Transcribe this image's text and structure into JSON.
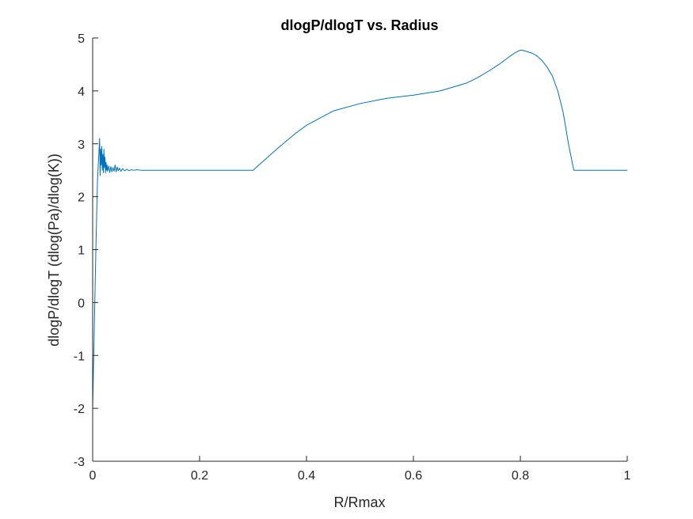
{
  "chart_data": {
    "type": "line",
    "title": "dlogP/dlogT vs. Radius",
    "xlabel": "R/Rmax",
    "ylabel": "dlogP/dlogT (dlog(Pa)/dlog(K))",
    "xlim": [
      0,
      1
    ],
    "ylim": [
      -3,
      5
    ],
    "xticks": [
      0,
      0.2,
      0.4,
      0.6,
      0.8,
      1
    ],
    "xtick_labels": [
      "0",
      "0.2",
      "0.4",
      "0.6",
      "0.8",
      "1"
    ],
    "yticks": [
      -3,
      -2,
      -1,
      0,
      1,
      2,
      3,
      4,
      5
    ],
    "ytick_labels": [
      "-3",
      "-2",
      "-1",
      "0",
      "1",
      "2",
      "3",
      "4",
      "5"
    ],
    "grid": false,
    "series": [
      {
        "name": "dlogP/dlogT",
        "color": "#0072BD",
        "x": [
          0.0,
          0.003,
          0.006,
          0.009,
          0.011,
          0.013,
          0.014,
          0.015,
          0.016,
          0.017,
          0.018,
          0.019,
          0.02,
          0.021,
          0.022,
          0.023,
          0.024,
          0.025,
          0.026,
          0.027,
          0.028,
          0.03,
          0.032,
          0.034,
          0.036,
          0.038,
          0.04,
          0.042,
          0.044,
          0.046,
          0.048,
          0.05,
          0.053,
          0.056,
          0.06,
          0.064,
          0.068,
          0.072,
          0.077,
          0.083,
          0.09,
          0.1,
          0.15,
          0.2,
          0.25,
          0.3,
          0.32,
          0.35,
          0.38,
          0.4,
          0.45,
          0.5,
          0.55,
          0.6,
          0.65,
          0.7,
          0.72,
          0.74,
          0.76,
          0.78,
          0.79,
          0.8,
          0.803,
          0.81,
          0.82,
          0.83,
          0.84,
          0.85,
          0.86,
          0.87,
          0.88,
          0.89,
          0.895,
          0.9,
          0.905,
          0.91,
          0.95,
          1.0
        ],
        "y": [
          -2.0,
          -0.5,
          1.0,
          2.3,
          2.7,
          3.1,
          2.4,
          2.9,
          2.6,
          2.95,
          2.5,
          2.8,
          2.45,
          2.9,
          2.55,
          2.75,
          2.45,
          2.65,
          2.5,
          2.6,
          2.48,
          2.58,
          2.46,
          2.57,
          2.47,
          2.55,
          2.48,
          2.6,
          2.47,
          2.56,
          2.49,
          2.54,
          2.48,
          2.53,
          2.49,
          2.52,
          2.49,
          2.51,
          2.5,
          2.51,
          2.5,
          2.5,
          2.5,
          2.5,
          2.5,
          2.5,
          2.68,
          2.95,
          3.2,
          3.35,
          3.62,
          3.76,
          3.86,
          3.92,
          4.0,
          4.15,
          4.25,
          4.37,
          4.5,
          4.65,
          4.72,
          4.77,
          4.77,
          4.75,
          4.72,
          4.67,
          4.58,
          4.45,
          4.28,
          4.0,
          3.6,
          3.0,
          2.75,
          2.5,
          2.5,
          2.5,
          2.5,
          2.5
        ]
      }
    ]
  }
}
